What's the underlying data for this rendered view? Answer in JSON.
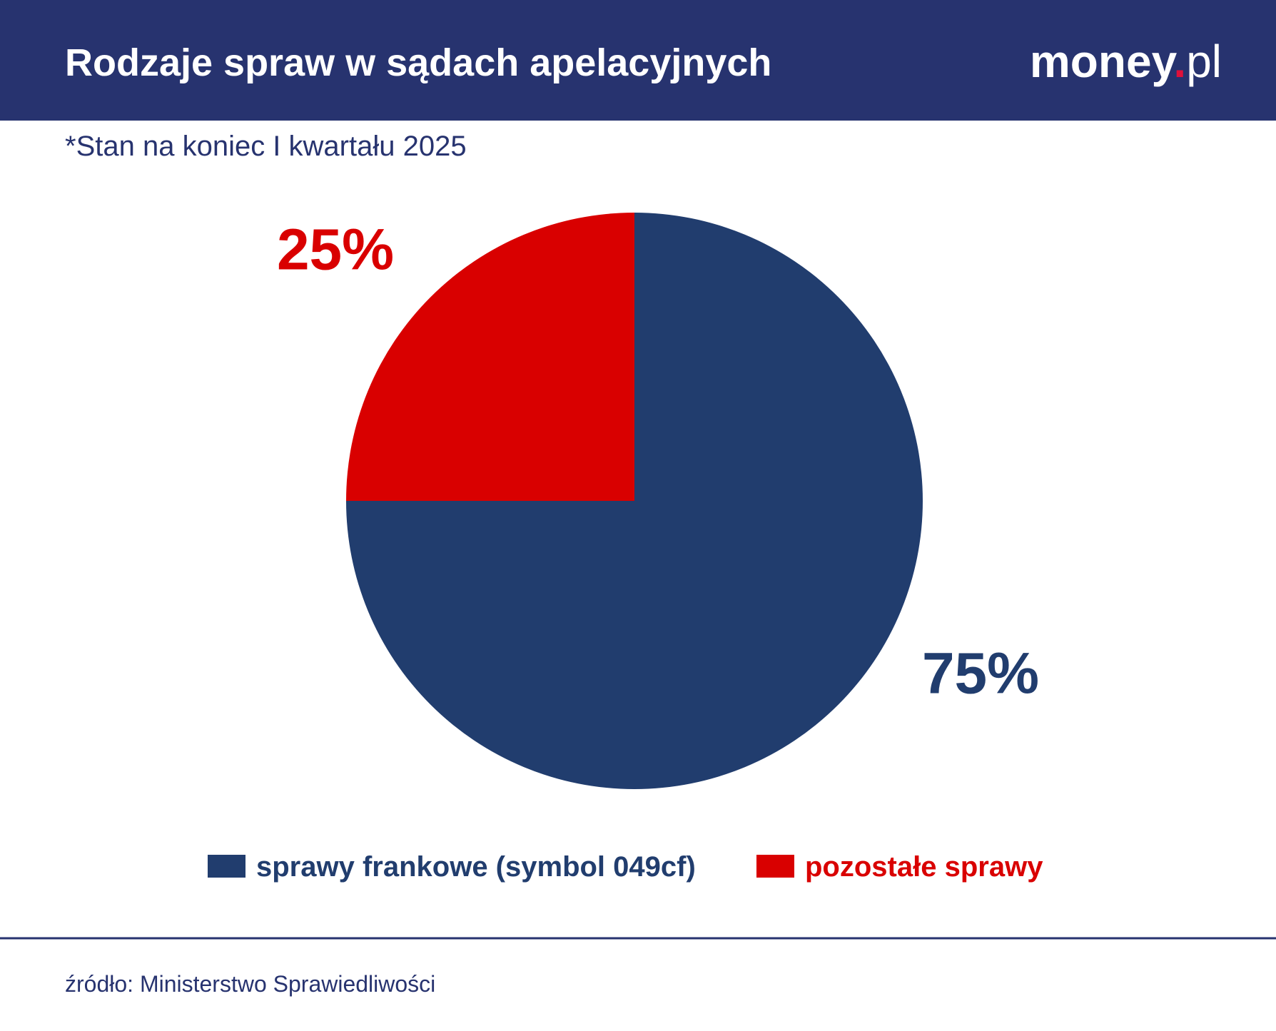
{
  "chart_data": {
    "type": "pie",
    "title": "Rodzaje spraw w sądach apelacyjnych",
    "subtitle": "*Stan na koniec I kwartału 2025",
    "logo": [
      "money",
      ".",
      "pl"
    ],
    "source": "źródło: Ministerstwo Sprawiedliwości",
    "categories": [
      "sprawy frankowe (symbol 049cf)",
      "pozostałe sprawy"
    ],
    "values": [
      75,
      25
    ],
    "value_labels": [
      "75%",
      "25%"
    ],
    "colors": [
      "#213d6e",
      "#d90000"
    ]
  }
}
